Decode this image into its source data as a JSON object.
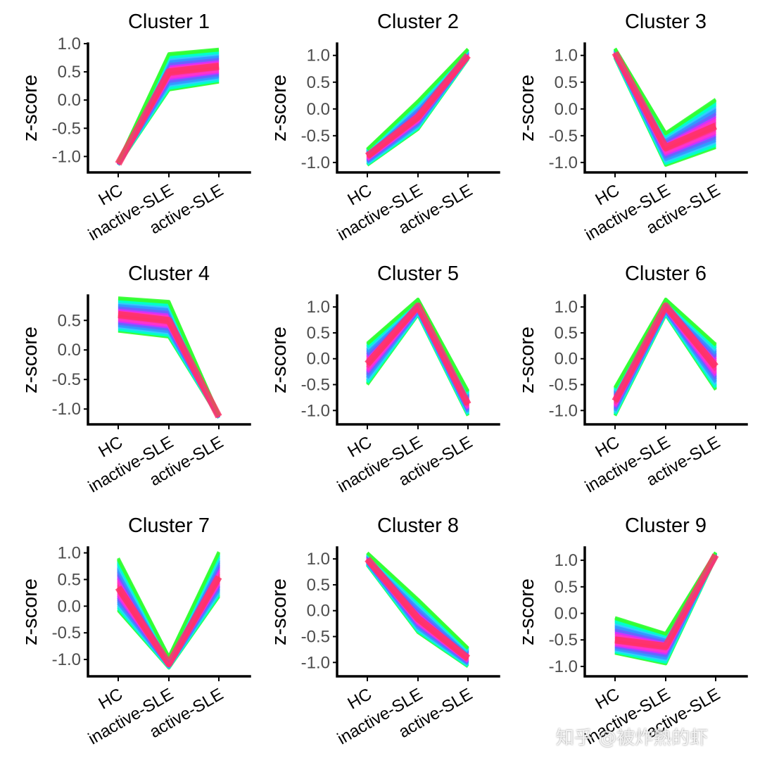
{
  "xlabels": [
    "HC",
    "inactive-SLE",
    "active-SLE"
  ],
  "ylabel": "z-score",
  "palette": [
    "#33ff33",
    "#00ffcc",
    "#33ccff",
    "#3399ff",
    "#6666ff",
    "#cc33ff",
    "#ff33cc",
    "#ff3399",
    "#ff3366"
  ],
  "watermark": "知乎 @被炸熟的虾",
  "chart_data": [
    {
      "type": "line",
      "title": "Cluster 1",
      "xlabel": "",
      "ylabel": "z-score",
      "categories": [
        "HC",
        "inactive-SLE",
        "active-SLE"
      ],
      "yticks": [
        -1.0,
        -0.5,
        0.0,
        0.5,
        1.0
      ],
      "ylim": [
        -1.22,
        1.0
      ],
      "lower": [
        -1.15,
        0.18,
        0.32
      ],
      "upper": [
        -1.1,
        0.82,
        0.9
      ],
      "center": [
        -1.13,
        0.5,
        0.6
      ]
    },
    {
      "type": "line",
      "title": "Cluster 2",
      "xlabel": "",
      "ylabel": "z-score",
      "categories": [
        "HC",
        "inactive-SLE",
        "active-SLE"
      ],
      "yticks": [
        -1.0,
        -0.5,
        0.0,
        0.5,
        1.0
      ],
      "ylim": [
        -1.12,
        1.22
      ],
      "lower": [
        -1.05,
        -0.38,
        0.93
      ],
      "upper": [
        -0.75,
        0.15,
        1.12
      ],
      "center": [
        -0.88,
        -0.15,
        1.0
      ]
    },
    {
      "type": "line",
      "title": "Cluster 3",
      "xlabel": "",
      "ylabel": "z-score",
      "categories": [
        "HC",
        "inactive-SLE",
        "active-SLE"
      ],
      "yticks": [
        -1.0,
        -0.5,
        0.0,
        0.5,
        1.0
      ],
      "ylim": [
        -1.12,
        1.22
      ],
      "lower": [
        0.95,
        -1.05,
        -0.72
      ],
      "upper": [
        1.13,
        -0.45,
        0.18
      ],
      "center": [
        1.05,
        -0.72,
        -0.32
      ]
    },
    {
      "type": "line",
      "title": "Cluster 4",
      "xlabel": "",
      "ylabel": "z-score",
      "categories": [
        "HC",
        "inactive-SLE",
        "active-SLE"
      ],
      "yticks": [
        -1.0,
        -0.5,
        0.0,
        0.5
      ],
      "ylim": [
        -1.2,
        0.92
      ],
      "lower": [
        0.32,
        0.22,
        -1.15
      ],
      "upper": [
        0.88,
        0.82,
        -1.1
      ],
      "center": [
        0.6,
        0.5,
        -1.13
      ]
    },
    {
      "type": "line",
      "title": "Cluster 5",
      "xlabel": "",
      "ylabel": "z-score",
      "categories": [
        "HC",
        "inactive-SLE",
        "active-SLE"
      ],
      "yticks": [
        -1.0,
        -0.5,
        0.0,
        0.5,
        1.0
      ],
      "ylim": [
        -1.2,
        1.22
      ],
      "lower": [
        -0.5,
        0.85,
        -1.1
      ],
      "upper": [
        0.3,
        1.15,
        -0.62
      ],
      "center": [
        -0.1,
        1.02,
        -0.88
      ]
    },
    {
      "type": "line",
      "title": "Cluster 6",
      "xlabel": "",
      "ylabel": "z-score",
      "categories": [
        "HC",
        "inactive-SLE",
        "active-SLE"
      ],
      "yticks": [
        -1.0,
        -0.5,
        0.0,
        0.5,
        1.0
      ],
      "ylim": [
        -1.2,
        1.22
      ],
      "lower": [
        -1.1,
        0.85,
        -0.6
      ],
      "upper": [
        -0.55,
        1.15,
        0.28
      ],
      "center": [
        -0.82,
        1.02,
        -0.15
      ]
    },
    {
      "type": "line",
      "title": "Cluster 7",
      "xlabel": "",
      "ylabel": "z-score",
      "categories": [
        "HC",
        "inactive-SLE",
        "active-SLE"
      ],
      "yticks": [
        -1.0,
        -0.5,
        0.0,
        0.5,
        1.0
      ],
      "ylim": [
        -1.25,
        1.1
      ],
      "lower": [
        -0.08,
        -1.16,
        0.18
      ],
      "upper": [
        0.9,
        -0.95,
        1.02
      ],
      "center": [
        0.35,
        -1.08,
        0.55
      ]
    },
    {
      "type": "line",
      "title": "Cluster 8",
      "xlabel": "",
      "ylabel": "z-score",
      "categories": [
        "HC",
        "inactive-SLE",
        "active-SLE"
      ],
      "yticks": [
        -1.0,
        -0.5,
        0.0,
        0.5,
        1.0
      ],
      "ylim": [
        -1.2,
        1.22
      ],
      "lower": [
        0.88,
        -0.42,
        -1.08
      ],
      "upper": [
        1.12,
        0.22,
        -0.72
      ],
      "center": [
        1.0,
        -0.15,
        -0.92
      ]
    },
    {
      "type": "line",
      "title": "Cluster 9",
      "xlabel": "",
      "ylabel": "z-score",
      "categories": [
        "HC",
        "inactive-SLE",
        "active-SLE"
      ],
      "yticks": [
        -1.0,
        -0.5,
        0.0,
        0.5,
        1.0
      ],
      "ylim": [
        -1.12,
        1.24
      ],
      "lower": [
        -0.75,
        -0.95,
        1.05
      ],
      "upper": [
        -0.08,
        -0.38,
        1.15
      ],
      "center": [
        -0.5,
        -0.62,
        1.1
      ]
    }
  ]
}
